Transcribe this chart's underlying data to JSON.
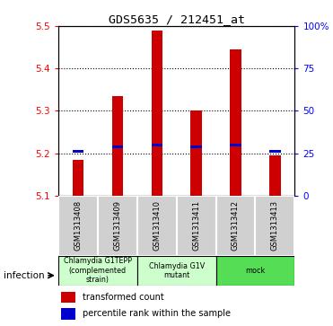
{
  "title": "GDS5635 / 212451_at",
  "samples": [
    "GSM1313408",
    "GSM1313409",
    "GSM1313410",
    "GSM1313411",
    "GSM1313412",
    "GSM1313413"
  ],
  "transformed_counts": [
    5.185,
    5.335,
    5.49,
    5.3,
    5.445,
    5.195
  ],
  "percentile_ranks": [
    5.205,
    5.215,
    5.22,
    5.215,
    5.22,
    5.205
  ],
  "bar_bottom": 5.1,
  "ylim": [
    5.1,
    5.5
  ],
  "yticks_left": [
    5.1,
    5.2,
    5.3,
    5.4,
    5.5
  ],
  "yticks_right_labels": [
    "0",
    "25",
    "50",
    "75",
    "100%"
  ],
  "yticks_right_vals": [
    5.1,
    5.2,
    5.3,
    5.4,
    5.5
  ],
  "groups": [
    {
      "label": "Chlamydia G1TEPP\n(complemented\nstrain)",
      "color": "#ccffcc",
      "start": 0,
      "end": 2
    },
    {
      "label": "Chlamydia G1V\nmutant",
      "color": "#ccffcc",
      "start": 2,
      "end": 4
    },
    {
      "label": "mock",
      "color": "#55dd55",
      "start": 4,
      "end": 6
    }
  ],
  "bar_color": "#cc0000",
  "percentile_color": "#0000cc",
  "sample_bg_color": "#d0d0d0",
  "infection_label": "infection",
  "legend_items": [
    {
      "color": "#cc0000",
      "label": "transformed count"
    },
    {
      "color": "#0000cc",
      "label": "percentile rank within the sample"
    }
  ]
}
